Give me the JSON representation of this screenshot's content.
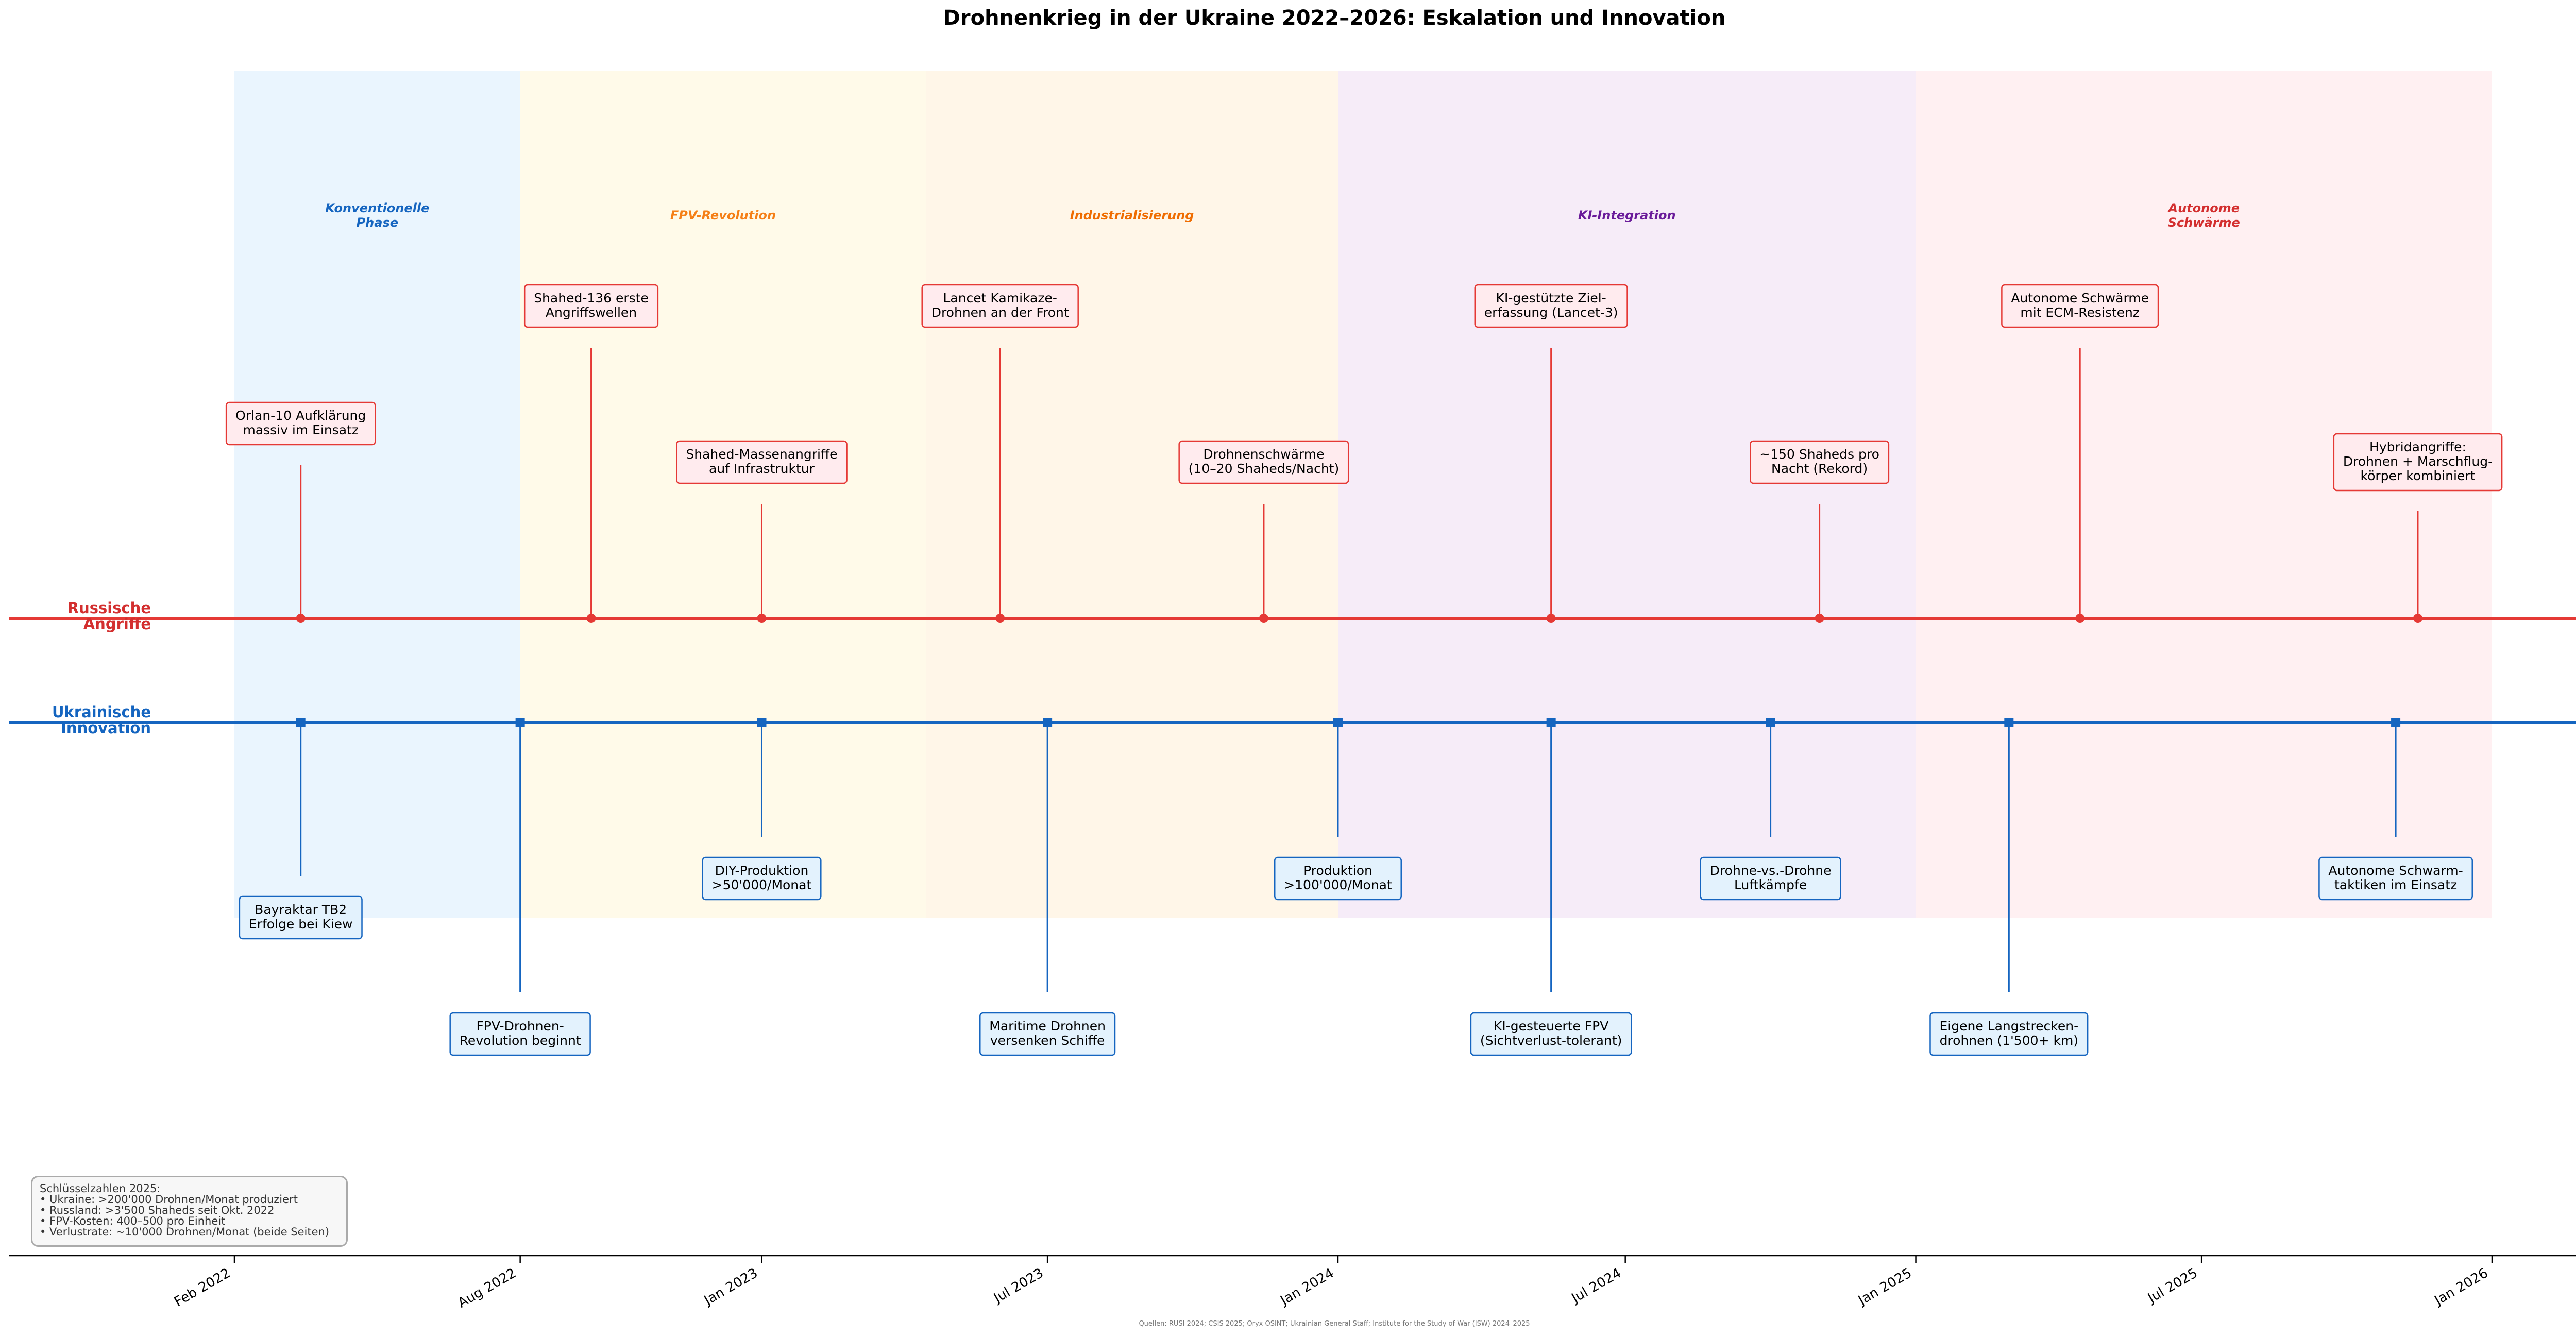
{
  "chart_data": {
    "type": "timeline",
    "title": "Drohnenkrieg in der Ukraine 2022–2026: Eskalation und Innovation",
    "x_range": [
      "2021-10-01",
      "2026-05-01"
    ],
    "x_ticks": [
      {
        "date": "2022-02-01",
        "label": "Feb 2022"
      },
      {
        "date": "2022-08-01",
        "label": "Aug 2022"
      },
      {
        "date": "2023-01-01",
        "label": "Jan 2023"
      },
      {
        "date": "2023-07-01",
        "label": "Jul 2023"
      },
      {
        "date": "2024-01-01",
        "label": "Jan 2024"
      },
      {
        "date": "2024-07-01",
        "label": "Jul 2024"
      },
      {
        "date": "2025-01-01",
        "label": "Jan 2025"
      },
      {
        "date": "2025-07-01",
        "label": "Jul 2025"
      },
      {
        "date": "2026-01-01",
        "label": "Jan 2026"
      }
    ],
    "phases": [
      {
        "start": "2022-02-01",
        "end": "2022-08-01",
        "label": "Konventionelle\nPhase",
        "color": "#1565c0",
        "fill": "#e3f2fd"
      },
      {
        "start": "2022-08-01",
        "end": "2023-04-15",
        "label": "FPV-Revolution",
        "color": "#f57f17",
        "fill": "#fff8e1"
      },
      {
        "start": "2023-04-15",
        "end": "2024-01-01",
        "label": "Industrialisierung",
        "color": "#ef6c00",
        "fill": "#fff3e0"
      },
      {
        "start": "2024-01-01",
        "end": "2025-01-01",
        "label": "KI-Integration",
        "color": "#6a1b9a",
        "fill": "#f3e5f5"
      },
      {
        "start": "2025-01-01",
        "end": "2026-01-01",
        "label": "Autonome\nSchwärme",
        "color": "#d32f2f",
        "fill": "#ffebee"
      }
    ],
    "series": [
      {
        "name": "Russische\nAngriffe",
        "color": "#e53935",
        "label_color": "#d32f2f",
        "box_fill": "#ffebee",
        "marker": "circle",
        "events": [
          {
            "date": "2022-03-15",
            "label": "Orlan-10 Aufklärung\nmassiv im Einsatz",
            "level": 2
          },
          {
            "date": "2022-09-15",
            "label": "Shahed-136 erste\nAngriffswellen",
            "level": 1
          },
          {
            "date": "2023-01-01",
            "label": "Shahed-Massenangriffe\nauf Infrastruktur",
            "level": 3
          },
          {
            "date": "2023-06-01",
            "label": "Lancet Kamikaze-\nDrohnen an der Front",
            "level": 1
          },
          {
            "date": "2023-11-15",
            "label": "Drohnenschwärme\n(10–20 Shaheds/Nacht)",
            "level": 3
          },
          {
            "date": "2024-05-15",
            "label": "KI-gestützte Ziel-\nerfassung (Lancet-3)",
            "level": 1
          },
          {
            "date": "2024-11-01",
            "label": "~150 Shaheds pro\nNacht (Rekord)",
            "level": 3
          },
          {
            "date": "2025-04-15",
            "label": "Autonome Schwärme\nmit ECM-Resistenz",
            "level": 1
          },
          {
            "date": "2025-11-15",
            "label": "Hybridangriffe:\nDrohnen + Marschflug-\nkörper kombiniert",
            "level": 3
          }
        ]
      },
      {
        "name": "Ukrainische\nInnovation",
        "color": "#1565c0",
        "label_color": "#1565c0",
        "box_fill": "#e3f2fd",
        "marker": "square",
        "events": [
          {
            "date": "2022-03-15",
            "label": "Bayraktar TB2\nErfolge bei Kiew",
            "level": 2
          },
          {
            "date": "2022-08-01",
            "label": "FPV-Drohnen-\nRevolution beginnt",
            "level": 1
          },
          {
            "date": "2023-01-01",
            "label": "DIY-Produktion\n>50'000/Monat",
            "level": 3
          },
          {
            "date": "2023-07-01",
            "label": "Maritime Drohnen\nversenken Schiffe",
            "level": 1
          },
          {
            "date": "2024-01-01",
            "label": "Produktion\n>100'000/Monat",
            "level": 3
          },
          {
            "date": "2024-05-15",
            "label": "KI-gesteuerte FPV\n(Sichtverlust-tolerant)",
            "level": 1
          },
          {
            "date": "2024-10-01",
            "label": "Drohne-vs.-Drohne\nLuftkämpfe",
            "level": 3
          },
          {
            "date": "2025-03-01",
            "label": "Eigene Langstrecken-\ndrohnen (1'500+ km)",
            "level": 1
          },
          {
            "date": "2025-11-01",
            "label": "Autonome Schwarm-\ntaktiken im Einsatz",
            "level": 3
          }
        ]
      }
    ],
    "source": "Quellen: RUSI 2024; CSIS 2025; Oryx OSINT; Ukrainian General Staff; Institute for the Study of War (ISW) 2024–2025"
  },
  "stats": {
    "heading": "Schlüsselzahlen 2025:",
    "lines": [
      "• Ukraine: >200'000 Drohnen/Monat produziert",
      "• Russland: >3'500 Shaheds seit Okt. 2022",
      "• FPV-Kosten: 400–500 pro Einheit",
      "• Verlustrate: ~10'000 Drohnen/Monat (beide Seiten)"
    ]
  }
}
